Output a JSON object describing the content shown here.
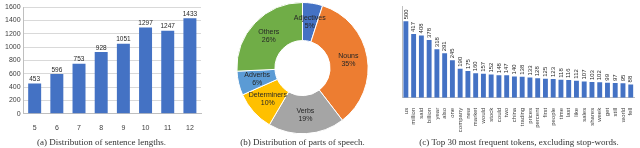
{
  "chart_data": [
    {
      "type": "bar",
      "title": "(a) Distribution of sentence lengths.",
      "categories": [
        "5",
        "6",
        "7",
        "8",
        "9",
        "10",
        "11",
        "12"
      ],
      "values": [
        453,
        596,
        753,
        928,
        1051,
        1297,
        1247,
        1433
      ],
      "color": "#4472c4",
      "ylim": [
        0,
        1600
      ],
      "yticks": [
        0,
        200,
        400,
        600,
        800,
        1000,
        1200,
        1400,
        1600
      ],
      "grid": true,
      "data_labels": true
    },
    {
      "type": "doughnut",
      "title": "(b) Distribution of parts of speech.",
      "categories": [
        "Adjectives",
        "Nouns",
        "Verbs",
        "Determiners",
        "Adverbs",
        "Others"
      ],
      "values": [
        5,
        35,
        19,
        10,
        6,
        26
      ],
      "value_labels": [
        "5%",
        "35%",
        "19%",
        "10%",
        "6%",
        "26%"
      ],
      "colors": [
        "#4472c4",
        "#ed7d31",
        "#a5a5a5",
        "#ffc000",
        "#5b9bd5",
        "#70ad47"
      ],
      "data_labels": true
    },
    {
      "type": "bar",
      "title": "(c) Top 30 most frequent tokens, excluding stop-words.",
      "categories": [
        "us",
        "million",
        "said",
        "billion",
        "year",
        "also",
        "one",
        "company",
        "new",
        "market",
        "would",
        "stock",
        "could",
        "two",
        "china",
        "trading",
        "prices",
        "percent",
        "first",
        "people",
        "time",
        "last",
        "like",
        "sales",
        "shares",
        "week",
        "get",
        "still",
        "world",
        "fell"
      ],
      "values": [
        500,
        417,
        408,
        378,
        318,
        291,
        245,
        190,
        175,
        160,
        157,
        152,
        148,
        147,
        140,
        138,
        133,
        128,
        125,
        123,
        118,
        116,
        112,
        107,
        103,
        102,
        99,
        97,
        95,
        88
      ],
      "color": "#4472c4",
      "ylim": [
        0,
        600
      ],
      "grid": false,
      "data_labels": true,
      "tick_labels": "x"
    }
  ]
}
